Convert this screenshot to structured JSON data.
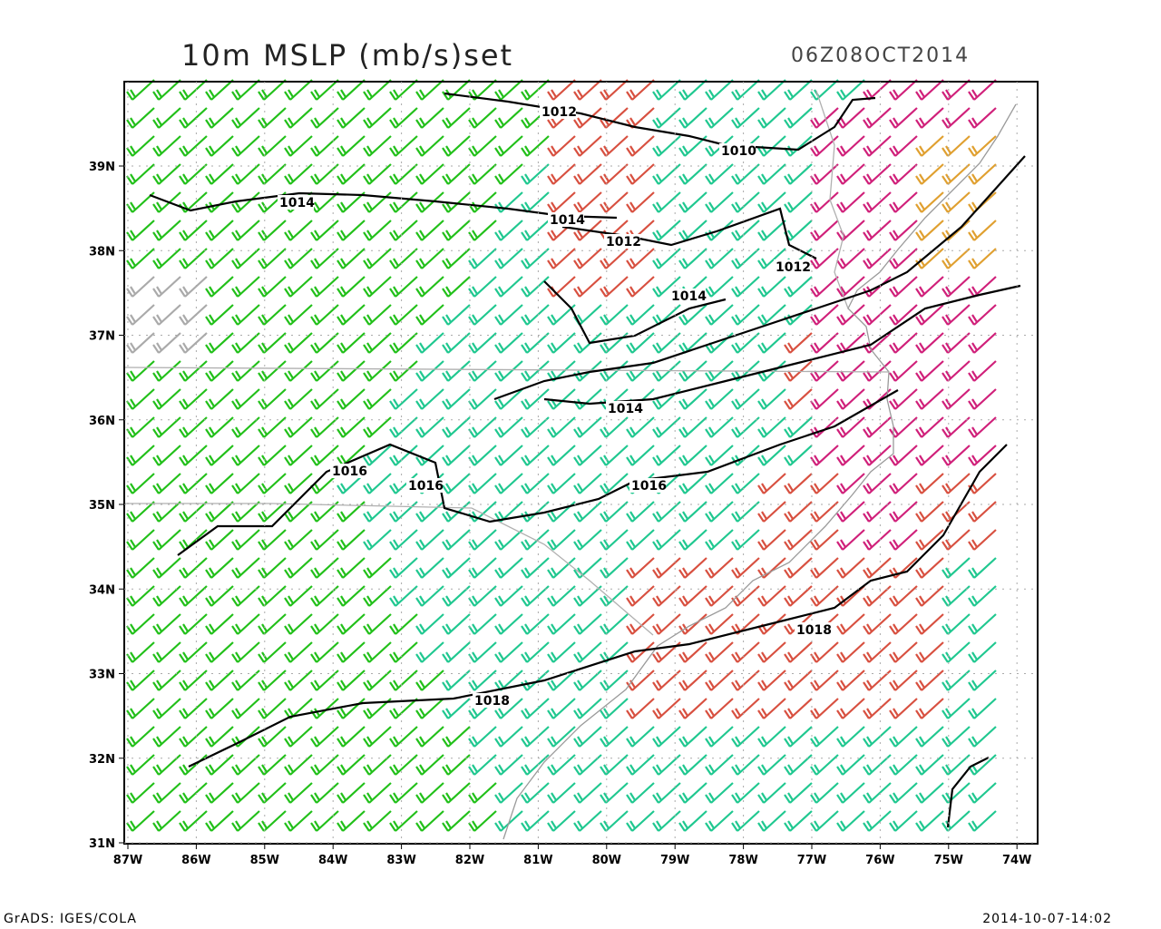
{
  "header": {
    "title": "10m MSLP (mb/s)set",
    "time": "06Z08OCT2014"
  },
  "axes": {
    "lon_labels": [
      "87W",
      "86W",
      "85W",
      "84W",
      "83W",
      "82W",
      "81W",
      "80W",
      "79W",
      "78W",
      "77W",
      "76W",
      "75W",
      "74W"
    ],
    "lat_labels": [
      "31N",
      "32N",
      "33N",
      "34N",
      "35N",
      "36N",
      "37N",
      "38N",
      "39N"
    ]
  },
  "contours": [
    "1012",
    "1010",
    "1014",
    "1014",
    "1012",
    "1012",
    "1014",
    "1014",
    "1016",
    "1016",
    "1016",
    "1018",
    "1018"
  ],
  "footer": {
    "left": "GrADS: IGES/COLA",
    "right": "2014-10-07-14:02"
  }
}
